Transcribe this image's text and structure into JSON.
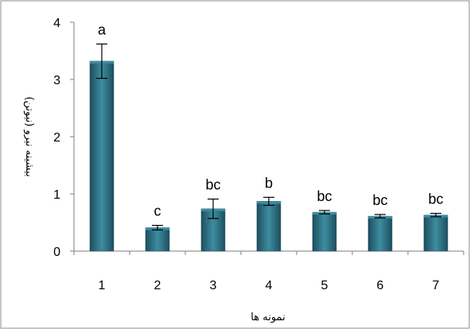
{
  "chart_data": {
    "type": "bar",
    "categories": [
      "1",
      "2",
      "3",
      "4",
      "5",
      "6",
      "7"
    ],
    "values": [
      3.32,
      0.41,
      0.74,
      0.87,
      0.68,
      0.61,
      0.63
    ],
    "errors": [
      0.3,
      0.04,
      0.17,
      0.07,
      0.03,
      0.03,
      0.03
    ],
    "significance_labels": [
      "a",
      "c",
      "bc",
      "b",
      "bc",
      "bc",
      "bc"
    ],
    "xlabel": "نمونه ها",
    "ylabel": "بیشینه نیرو (نیوتن)",
    "ylim": [
      0,
      4
    ],
    "yticks": [
      "0",
      "1",
      "2",
      "3",
      "4"
    ],
    "grid": false,
    "colors": {
      "bar": "#2a6a7e",
      "bar_light": "#3d8ca0",
      "bar_dark": "#1d4f5f",
      "axis": "#7f7f7f",
      "frame": "#8c8c8c"
    }
  }
}
